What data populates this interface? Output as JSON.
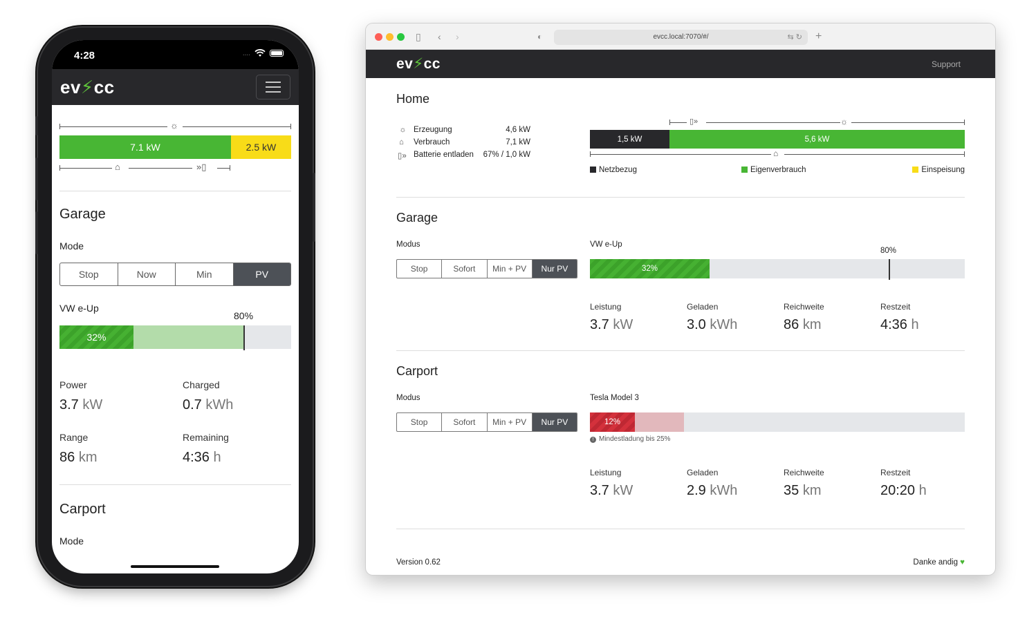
{
  "phone": {
    "status": {
      "time": "4:28",
      "signal": "....",
      "wifi": "wifi-icon"
    },
    "logo": {
      "left": "ev",
      "bolt": "⚡",
      "right": "cc"
    },
    "energy": {
      "green_label": "7.1 kW",
      "yellow_label": "2.5 kW",
      "green_share": 0.74
    },
    "garage": {
      "title": "Garage",
      "mode_label": "Mode",
      "modes": [
        "Stop",
        "Now",
        "Min",
        "PV"
      ],
      "active_mode": "PV",
      "vehicle": "VW e-Up",
      "target": "80%",
      "soc_label": "32%",
      "stats": [
        {
          "label": "Power",
          "value": "3.7",
          "unit": "kW"
        },
        {
          "label": "Charged",
          "value": "0.7",
          "unit": "kWh"
        },
        {
          "label": "Range",
          "value": "86",
          "unit": "km"
        },
        {
          "label": "Remaining",
          "value": "4:36",
          "unit": "h"
        }
      ]
    },
    "carport": {
      "title": "Carport",
      "mode_label": "Mode"
    }
  },
  "browser": {
    "url": "evcc.local:7070/#/",
    "logo": {
      "left": "ev",
      "bolt": "⚡",
      "right": "cc"
    },
    "support": "Support",
    "home": {
      "title": "Home",
      "rows": [
        {
          "icon": "sun-icon",
          "label": "Erzeugung",
          "value": "4,6 kW"
        },
        {
          "icon": "home-icon",
          "label": "Verbrauch",
          "value": "7,1 kW"
        },
        {
          "icon": "battery-icon",
          "label": "Batterie entladen",
          "value": "67% / 1,0 kW"
        }
      ],
      "bar_dark_label": "1,5 kW",
      "bar_green_label": "5,6 kW",
      "legend": [
        "Netzbezug",
        "Eigenverbrauch",
        "Einspeisung"
      ],
      "colors": {
        "grid": "#28282b",
        "self": "#48b634",
        "feed": "#f8dc18"
      }
    },
    "garage": {
      "title": "Garage",
      "mode_label": "Modus",
      "modes": [
        "Stop",
        "Sofort",
        "Min + PV",
        "Nur PV"
      ],
      "active_mode": "Nur PV",
      "vehicle": "VW e-Up",
      "target": "80%",
      "soc_label": "32%",
      "stats": [
        {
          "label": "Leistung",
          "value": "3.7",
          "unit": "kW"
        },
        {
          "label": "Geladen",
          "value": "3.0",
          "unit": "kWh"
        },
        {
          "label": "Reichweite",
          "value": "86",
          "unit": "km"
        },
        {
          "label": "Restzeit",
          "value": "4:36",
          "unit": "h"
        }
      ]
    },
    "carport": {
      "title": "Carport",
      "mode_label": "Modus",
      "modes": [
        "Stop",
        "Sofort",
        "Min + PV",
        "Nur PV"
      ],
      "active_mode": "Nur PV",
      "vehicle": "Tesla Model 3",
      "soc_label": "12%",
      "min_hint": "Mindestladung bis 25%",
      "stats": [
        {
          "label": "Leistung",
          "value": "3.7",
          "unit": "kW"
        },
        {
          "label": "Geladen",
          "value": "2.9",
          "unit": "kWh"
        },
        {
          "label": "Reichweite",
          "value": "35",
          "unit": "km"
        },
        {
          "label": "Restzeit",
          "value": "20:20",
          "unit": "h"
        }
      ]
    },
    "footer": {
      "version": "Version 0.62",
      "thanks": "Danke andig",
      "heart": "♥"
    }
  }
}
